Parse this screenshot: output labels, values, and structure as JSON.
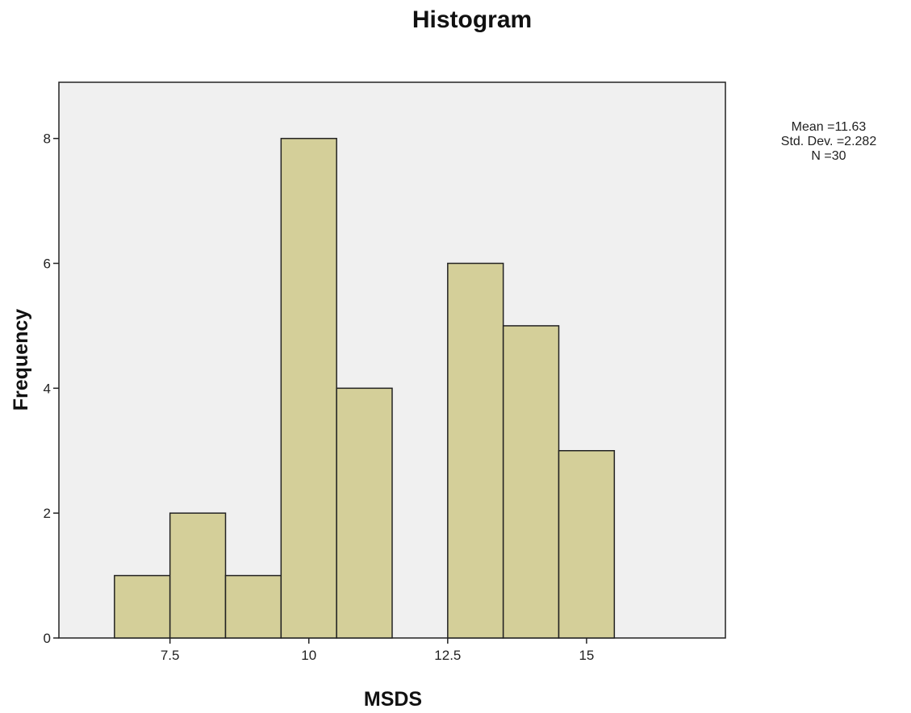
{
  "chart_data": {
    "type": "bar",
    "title": "Histogram",
    "xlabel": "MSDS",
    "ylabel": "Frequency",
    "bins": [
      {
        "from": 6.5,
        "to": 7.5,
        "value": 1
      },
      {
        "from": 7.5,
        "to": 8.5,
        "value": 2
      },
      {
        "from": 8.5,
        "to": 9.5,
        "value": 1
      },
      {
        "from": 9.5,
        "to": 10.5,
        "value": 8
      },
      {
        "from": 10.5,
        "to": 11.5,
        "value": 4
      },
      {
        "from": 11.5,
        "to": 12.5,
        "value": 0
      },
      {
        "from": 12.5,
        "to": 13.5,
        "value": 6
      },
      {
        "from": 13.5,
        "to": 14.5,
        "value": 5
      },
      {
        "from": 14.5,
        "to": 15.5,
        "value": 3
      }
    ],
    "xlim": [
      5.5,
      17.5
    ],
    "ylim": [
      0,
      8.9
    ],
    "x_ticks": [
      {
        "value": 7.5,
        "label": "7.5"
      },
      {
        "value": 10,
        "label": "10"
      },
      {
        "value": 12.5,
        "label": "12.5"
      },
      {
        "value": 15,
        "label": "15"
      }
    ],
    "y_ticks": [
      {
        "value": 0,
        "label": "0"
      },
      {
        "value": 2,
        "label": "2"
      },
      {
        "value": 4,
        "label": "4"
      },
      {
        "value": 6,
        "label": "6"
      },
      {
        "value": 8,
        "label": "8"
      }
    ],
    "stats": {
      "mean": "Mean =11.63",
      "std_dev": "Std. Dev. =2.282",
      "n": "N =30"
    },
    "grid": false,
    "colors": {
      "bar_fill": "#d4cf99",
      "bar_stroke": "#222222",
      "plot_background": "#f0f0f0"
    }
  }
}
